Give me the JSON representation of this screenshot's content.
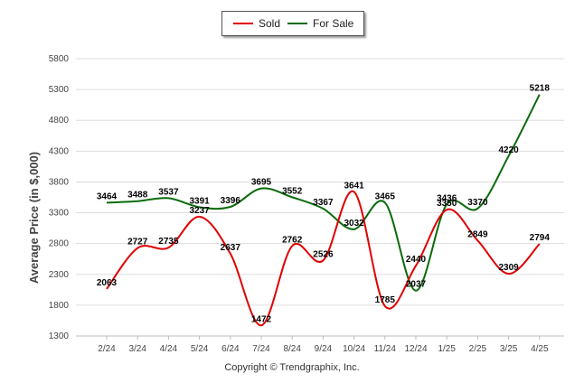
{
  "copyright": "Copyright © Trendgraphix, Inc.",
  "chart_data": {
    "type": "line",
    "title": "",
    "xlabel": "",
    "ylabel": "Average Price (in $,000)",
    "ylim": [
      1300,
      5800
    ],
    "yticks": [
      1300,
      1800,
      2300,
      2800,
      3300,
      3800,
      4300,
      4800,
      5300,
      5800
    ],
    "grid": true,
    "legend_position": "top",
    "categories": [
      "2/24",
      "3/24",
      "4/24",
      "5/24",
      "6/24",
      "7/24",
      "8/24",
      "9/24",
      "10/24",
      "11/24",
      "12/24",
      "1/25",
      "2/25",
      "3/25",
      "4/25"
    ],
    "series": [
      {
        "name": "Sold",
        "color": "#e00000",
        "values": [
          2063,
          2727,
          2735,
          3237,
          2637,
          1472,
          2762,
          2526,
          3641,
          1785,
          2440,
          3350,
          2849,
          2309,
          2794
        ]
      },
      {
        "name": "For Sale",
        "color": "#0a6b0a",
        "values": [
          3464,
          3488,
          3537,
          3391,
          3396,
          3695,
          3552,
          3367,
          3032,
          3465,
          2037,
          3436,
          3370,
          4220,
          5218
        ]
      }
    ]
  }
}
